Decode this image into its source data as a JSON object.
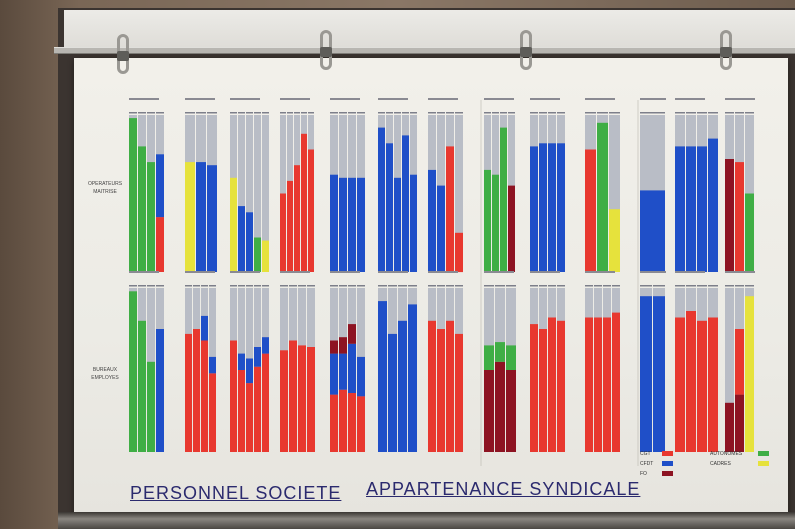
{
  "poster": {
    "title_left": "PERSONNEL SOCIETE",
    "title_right": "APPARTENANCE SYNDICALE",
    "rows": [
      {
        "label_lines": [
          "OPERATEURS",
          "MAITRISE"
        ]
      },
      {
        "label_lines": [
          "BUREAUX",
          "EMPLOYES"
        ]
      }
    ]
  },
  "colors": {
    "background_bar": "#b9bdc6",
    "cgt": "#e8382f",
    "cfdt": "#1f4fc8",
    "fo": "#8d1322",
    "autonomes": "#3fae45",
    "cadres": "#e6e23c"
  },
  "legend": [
    {
      "code": "CGT",
      "color": "#e8382f"
    },
    {
      "code": "CFDT",
      "color": "#1f4fc8"
    },
    {
      "code": "FO",
      "color": "#8d1322"
    },
    {
      "code": "AUTONOMES",
      "color": "#3fae45"
    },
    {
      "code": "CADRES",
      "color": "#e6e23c"
    }
  ],
  "chart_data": {
    "type": "bar",
    "description_of_units": "fraction of the column height filled by each colour (0-1), bottom to top",
    "rows": [
      {
        "groups": [
          {
            "bars": [
              [
                [
                  "autonomes",
                  0.98
                ]
              ],
              [
                [
                  "autonomes",
                  0.8
                ]
              ],
              [
                [
                  "autonomes",
                  0.7
                ]
              ],
              [
                [
                  "cgt",
                  0.35
                ],
                [
                  "cfdt",
                  0.4
                ]
              ]
            ]
          },
          {
            "bars": [
              [
                [
                  "cadres",
                  0.7
                ]
              ],
              [
                [
                  "cfdt",
                  0.7
                ]
              ],
              [
                [
                  "cfdt",
                  0.68
                ]
              ]
            ]
          },
          {
            "bars": [
              [
                [
                  "cadres",
                  0.6
                ]
              ],
              [
                [
                  "cfdt",
                  0.42
                ]
              ],
              [
                [
                  "cfdt",
                  0.38
                ]
              ],
              [
                [
                  "autonomes",
                  0.22
                ]
              ],
              [
                [
                  "cadres",
                  0.2
                ]
              ]
            ]
          },
          {
            "bars": [
              [
                [
                  "cgt",
                  0.5
                ]
              ],
              [
                [
                  "cgt",
                  0.58
                ]
              ],
              [
                [
                  "cgt",
                  0.68
                ]
              ],
              [
                [
                  "cgt",
                  0.88
                ]
              ],
              [
                [
                  "cgt",
                  0.78
                ]
              ]
            ]
          },
          {
            "bars": [
              [
                [
                  "cfdt",
                  0.62
                ]
              ],
              [
                [
                  "cfdt",
                  0.6
                ]
              ],
              [
                [
                  "cfdt",
                  0.6
                ]
              ],
              [
                [
                  "cfdt",
                  0.6
                ]
              ]
            ]
          },
          {
            "bars": [
              [
                [
                  "cfdt",
                  0.92
                ]
              ],
              [
                [
                  "cfdt",
                  0.82
                ]
              ],
              [
                [
                  "cfdt",
                  0.6
                ]
              ],
              [
                [
                  "cfdt",
                  0.87
                ]
              ],
              [
                [
                  "cfdt",
                  0.62
                ]
              ]
            ]
          },
          {
            "bars": [
              [
                [
                  "cfdt",
                  0.65
                ]
              ],
              [
                [
                  "cfdt",
                  0.55
                ]
              ],
              [
                [
                  "cgt",
                  0.8
                ]
              ],
              [
                [
                  "cgt",
                  0.25
                ]
              ]
            ]
          },
          {
            "bars": [
              [
                [
                  "autonomes",
                  0.65
                ]
              ],
              [
                [
                  "autonomes",
                  0.62
                ]
              ],
              [
                [
                  "autonomes",
                  0.92
                ]
              ],
              [
                [
                  "fo",
                  0.55
                ]
              ]
            ]
          },
          {
            "bars": [
              [
                [
                  "cfdt",
                  0.8
                ]
              ],
              [
                [
                  "cfdt",
                  0.82
                ]
              ],
              [
                [
                  "cfdt",
                  0.82
                ]
              ],
              [
                [
                  "cfdt",
                  0.82
                ]
              ]
            ]
          },
          {
            "bars": [
              [
                [
                  "cgt",
                  0.78
                ]
              ],
              [
                [
                  "autonomes",
                  0.95
                ]
              ],
              [
                [
                  "cadres",
                  0.4
                ]
              ]
            ]
          },
          {
            "bars": [
              [
                [
                  "cfdt",
                  0.52
                ]
              ]
            ]
          },
          {
            "bars": [
              [
                [
                  "cfdt",
                  0.8
                ]
              ],
              [
                [
                  "cfdt",
                  0.8
                ]
              ],
              [
                [
                  "cfdt",
                  0.8
                ]
              ],
              [
                [
                  "cfdt",
                  0.85
                ]
              ]
            ]
          },
          {
            "bars": [
              [
                [
                  "fo",
                  0.72
                ]
              ],
              [
                [
                  "cgt",
                  0.7
                ]
              ],
              [
                [
                  "autonomes",
                  0.5
                ]
              ]
            ]
          }
        ]
      },
      {
        "groups": [
          {
            "bars": [
              [
                [
                  "autonomes",
                  0.98
                ]
              ],
              [
                [
                  "autonomes",
                  0.8
                ]
              ],
              [
                [
                  "autonomes",
                  0.55
                ]
              ],
              [
                [
                  "cfdt",
                  0.75
                ]
              ]
            ]
          },
          {
            "bars": [
              [
                [
                  "cgt",
                  0.72
                ]
              ],
              [
                [
                  "cgt",
                  0.75
                ]
              ],
              [
                [
                  "cgt",
                  0.68
                ],
                [
                  "cfdt",
                  0.15
                ]
              ],
              [
                [
                  "cgt",
                  0.48
                ],
                [
                  "cfdt",
                  0.1
                ]
              ]
            ]
          },
          {
            "bars": [
              [
                [
                  "cgt",
                  0.68
                ]
              ],
              [
                [
                  "cgt",
                  0.5
                ],
                [
                  "cfdt",
                  0.1
                ]
              ],
              [
                [
                  "cgt",
                  0.42
                ],
                [
                  "cfdt",
                  0.15
                ]
              ],
              [
                [
                  "cgt",
                  0.52
                ],
                [
                  "cfdt",
                  0.12
                ]
              ],
              [
                [
                  "cgt",
                  0.6
                ],
                [
                  "cfdt",
                  0.1
                ]
              ]
            ]
          },
          {
            "bars": [
              [
                [
                  "cgt",
                  0.62
                ]
              ],
              [
                [
                  "cgt",
                  0.68
                ]
              ],
              [
                [
                  "cgt",
                  0.65
                ]
              ],
              [
                [
                  "cgt",
                  0.64
                ]
              ]
            ]
          },
          {
            "bars": [
              [
                [
                  "cgt",
                  0.35
                ],
                [
                  "cfdt",
                  0.25
                ],
                [
                  "fo",
                  0.08
                ]
              ],
              [
                [
                  "cgt",
                  0.38
                ],
                [
                  "cfdt",
                  0.22
                ],
                [
                  "fo",
                  0.1
                ]
              ],
              [
                [
                  "cgt",
                  0.36
                ],
                [
                  "cfdt",
                  0.3
                ],
                [
                  "fo",
                  0.12
                ]
              ],
              [
                [
                  "cgt",
                  0.34
                ],
                [
                  "cfdt",
                  0.24
                ]
              ]
            ]
          },
          {
            "bars": [
              [
                [
                  "cfdt",
                  0.92
                ]
              ],
              [
                [
                  "cfdt",
                  0.72
                ]
              ],
              [
                [
                  "cfdt",
                  0.8
                ]
              ],
              [
                [
                  "cfdt",
                  0.9
                ]
              ]
            ]
          },
          {
            "bars": [
              [
                [
                  "cgt",
                  0.8
                ]
              ],
              [
                [
                  "cgt",
                  0.75
                ]
              ],
              [
                [
                  "cgt",
                  0.8
                ]
              ],
              [
                [
                  "cgt",
                  0.72
                ]
              ]
            ]
          },
          {
            "bars": [
              [
                [
                  "fo",
                  0.5
                ],
                [
                  "autonomes",
                  0.15
                ]
              ],
              [
                [
                  "fo",
                  0.55
                ],
                [
                  "autonomes",
                  0.12
                ]
              ],
              [
                [
                  "fo",
                  0.5
                ],
                [
                  "autonomes",
                  0.15
                ]
              ]
            ]
          },
          {
            "bars": [
              [
                [
                  "cgt",
                  0.78
                ]
              ],
              [
                [
                  "cgt",
                  0.75
                ]
              ],
              [
                [
                  "cgt",
                  0.82
                ]
              ],
              [
                [
                  "cgt",
                  0.8
                ]
              ]
            ]
          },
          {
            "bars": [
              [
                [
                  "cgt",
                  0.82
                ]
              ],
              [
                [
                  "cgt",
                  0.82
                ]
              ],
              [
                [
                  "cgt",
                  0.82
                ]
              ],
              [
                [
                  "cgt",
                  0.85
                ]
              ]
            ]
          },
          {
            "bars": [
              [
                [
                  "cfdt",
                  0.95
                ]
              ],
              [
                [
                  "cfdt",
                  0.95
                ]
              ]
            ]
          },
          {
            "bars": [
              [
                [
                  "cgt",
                  0.82
                ]
              ],
              [
                [
                  "cgt",
                  0.86
                ]
              ],
              [
                [
                  "cgt",
                  0.8
                ]
              ],
              [
                [
                  "cgt",
                  0.82
                ]
              ]
            ]
          },
          {
            "bars": [
              [
                [
                  "fo",
                  0.3
                ]
              ],
              [
                [
                  "fo",
                  0.35
                ],
                [
                  "cgt",
                  0.4
                ]
              ],
              [
                [
                  "cadres",
                  0.95
                ]
              ]
            ]
          }
        ]
      }
    ]
  }
}
